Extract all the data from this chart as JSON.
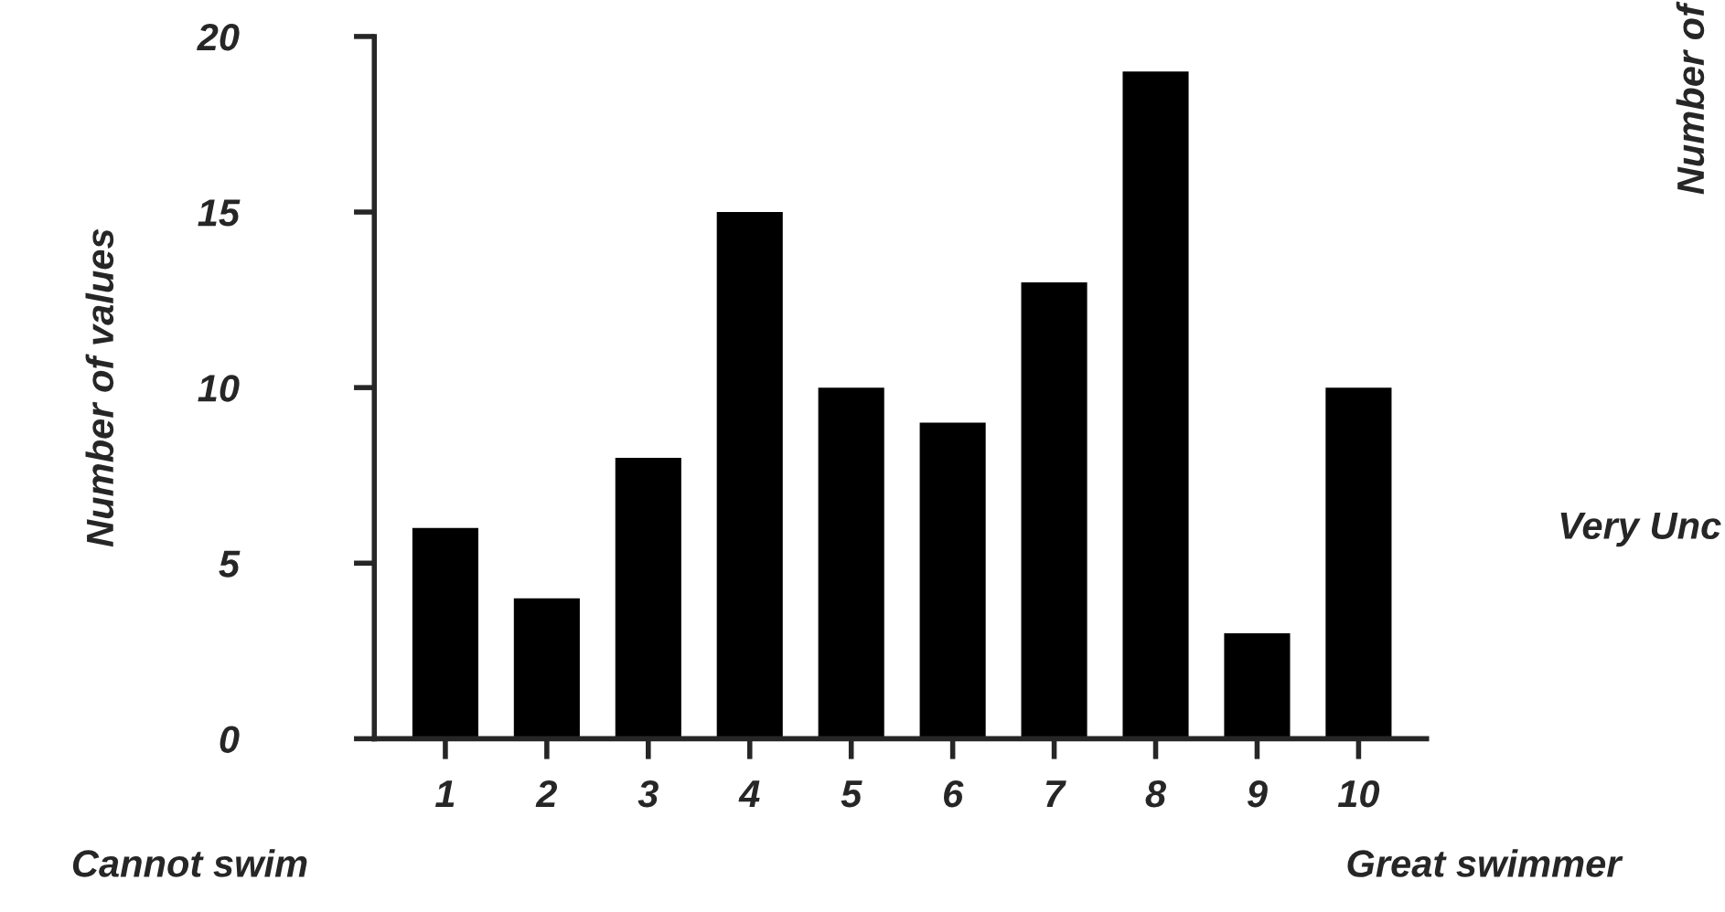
{
  "chart_data": {
    "type": "bar",
    "ylabel": "Number of values",
    "categories": [
      "1",
      "2",
      "3",
      "4",
      "5",
      "6",
      "7",
      "8",
      "9",
      "10"
    ],
    "values": [
      6,
      4,
      8,
      15,
      10,
      9,
      13,
      19,
      3,
      10
    ],
    "color": "#000000",
    "ylim": [
      0,
      20
    ],
    "yticks": [
      0,
      5,
      10,
      15,
      20
    ],
    "grid": false,
    "legend": false,
    "annotations": [
      "Cannot swim",
      "Great swimmer",
      "Number of",
      "Very Unc"
    ]
  }
}
